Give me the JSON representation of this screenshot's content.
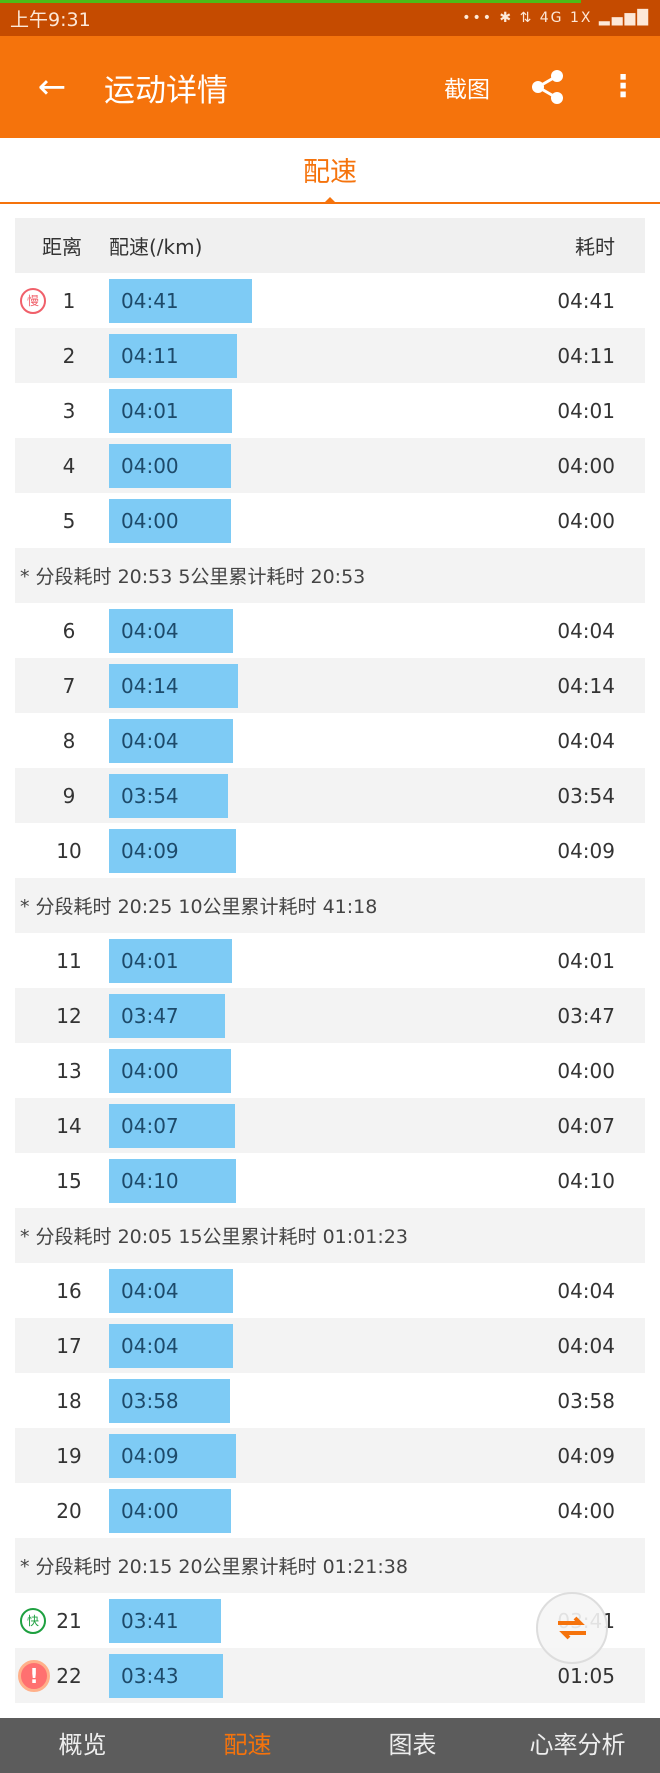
{
  "status": {
    "time": "上午9:31",
    "icons": "••• ✱ ⇅ 4G 1X ▂▄▆█"
  },
  "header": {
    "title": "运动详情",
    "screenshot": "截图"
  },
  "tab": "配速",
  "table": {
    "headers": {
      "distance": "距离",
      "pace": "配速(/km)",
      "time": "耗时"
    },
    "rows": [
      {
        "type": "km",
        "km": "1",
        "pace": "04:41",
        "time": "04:41",
        "badge": "慢"
      },
      {
        "type": "km",
        "km": "2",
        "pace": "04:11",
        "time": "04:11"
      },
      {
        "type": "km",
        "km": "3",
        "pace": "04:01",
        "time": "04:01"
      },
      {
        "type": "km",
        "km": "4",
        "pace": "04:00",
        "time": "04:00"
      },
      {
        "type": "km",
        "km": "5",
        "pace": "04:00",
        "time": "04:00"
      },
      {
        "type": "summary",
        "text": "*  分段耗时  20:53    5公里累计耗时  20:53"
      },
      {
        "type": "km",
        "km": "6",
        "pace": "04:04",
        "time": "04:04"
      },
      {
        "type": "km",
        "km": "7",
        "pace": "04:14",
        "time": "04:14"
      },
      {
        "type": "km",
        "km": "8",
        "pace": "04:04",
        "time": "04:04"
      },
      {
        "type": "km",
        "km": "9",
        "pace": "03:54",
        "time": "03:54"
      },
      {
        "type": "km",
        "km": "10",
        "pace": "04:09",
        "time": "04:09"
      },
      {
        "type": "summary",
        "text": "*  分段耗时  20:25    10公里累计耗时  41:18"
      },
      {
        "type": "km",
        "km": "11",
        "pace": "04:01",
        "time": "04:01"
      },
      {
        "type": "km",
        "km": "12",
        "pace": "03:47",
        "time": "03:47"
      },
      {
        "type": "km",
        "km": "13",
        "pace": "04:00",
        "time": "04:00"
      },
      {
        "type": "km",
        "km": "14",
        "pace": "04:07",
        "time": "04:07"
      },
      {
        "type": "km",
        "km": "15",
        "pace": "04:10",
        "time": "04:10"
      },
      {
        "type": "summary",
        "text": "*  分段耗时  20:05    15公里累计耗时  01:01:23"
      },
      {
        "type": "km",
        "km": "16",
        "pace": "04:04",
        "time": "04:04"
      },
      {
        "type": "km",
        "km": "17",
        "pace": "04:04",
        "time": "04:04"
      },
      {
        "type": "km",
        "km": "18",
        "pace": "03:58",
        "time": "03:58"
      },
      {
        "type": "km",
        "km": "19",
        "pace": "04:09",
        "time": "04:09"
      },
      {
        "type": "km",
        "km": "20",
        "pace": "04:00",
        "time": "04:00"
      },
      {
        "type": "summary",
        "text": "*  分段耗时  20:15    20公里累计耗时  01:21:38"
      },
      {
        "type": "km",
        "km": "21",
        "pace": "03:41",
        "time": "03:41",
        "badge": "快"
      },
      {
        "type": "km",
        "km": "22",
        "pace": "03:43",
        "time": "01:05",
        "badge": "!"
      }
    ]
  },
  "nav": [
    "概览",
    "配速",
    "图表",
    "心率分析"
  ],
  "nav_active": 1,
  "colors": {
    "accent": "#f5730c",
    "bar": "#7ecbf5",
    "nav_bg": "#5c5c5c"
  }
}
